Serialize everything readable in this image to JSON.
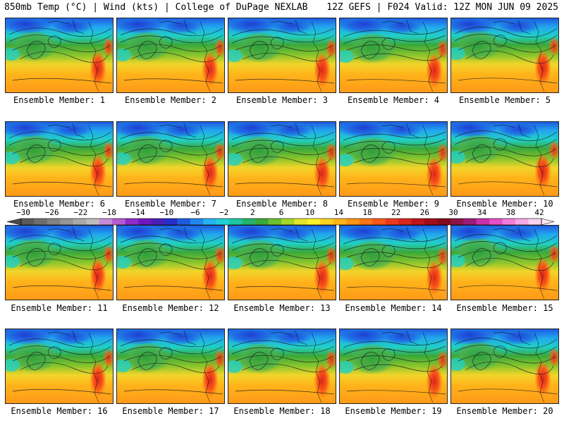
{
  "header": {
    "left": "850mb Temp (°C) | Wind (kts) | College of DuPage NEXLAB",
    "right": "12Z GEFS | F024 Valid: 12Z MON JUN 09 2025"
  },
  "members": [
    "Ensemble Member: 1",
    "Ensemble Member: 2",
    "Ensemble Member: 3",
    "Ensemble Member: 4",
    "Ensemble Member: 5",
    "Ensemble Member: 6",
    "Ensemble Member: 7",
    "Ensemble Member: 8",
    "Ensemble Member: 9",
    "Ensemble Member: 10",
    "Ensemble Member: 11",
    "Ensemble Member: 12",
    "Ensemble Member: 13",
    "Ensemble Member: 14",
    "Ensemble Member: 15",
    "Ensemble Member: 16",
    "Ensemble Member: 17",
    "Ensemble Member: 18",
    "Ensemble Member: 19",
    "Ensemble Member: 20"
  ],
  "colorbar": {
    "labels": [
      "−30",
      "−26",
      "−22",
      "−18",
      "−14",
      "−10",
      "−6",
      "−2",
      "2",
      "6",
      "10",
      "14",
      "18",
      "22",
      "26",
      "30",
      "34",
      "38",
      "42"
    ],
    "colors": [
      "#5a5a5a",
      "#6e6e6e",
      "#828282",
      "#969696",
      "#aaaaaa",
      "#bdbdbd",
      "#c78bd6",
      "#b35bd0",
      "#8f2bc8",
      "#6f16c0",
      "#4b1fb8",
      "#2630c9",
      "#1e5ae0",
      "#2286ef",
      "#25b4f2",
      "#20d0d6",
      "#1fc7a0",
      "#24b36b",
      "#3aa83a",
      "#6cbf2f",
      "#a8d52a",
      "#e4e52b",
      "#fff12a",
      "#ffd21f",
      "#ffb31a",
      "#ff9416",
      "#ff7515",
      "#fb5818",
      "#ee3a1c",
      "#d9261e",
      "#c1141d",
      "#a20d1a",
      "#850a1b",
      "#8d1347",
      "#9c1d78",
      "#c82fa8",
      "#e54fc8",
      "#f07ed9",
      "#f5a9e6",
      "#f8d2f1"
    ]
  }
}
